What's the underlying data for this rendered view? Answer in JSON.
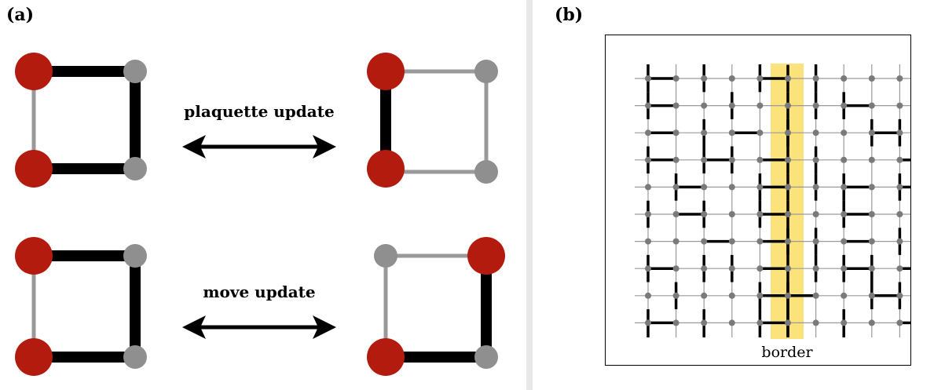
{
  "panel_a": {
    "label": "(a)",
    "plaquette_update_label": "plaquette update",
    "move_update_label": "move update"
  },
  "panel_b": {
    "label": "(b)",
    "border_label": "border"
  },
  "colors": {
    "red_site": "#b31b0f",
    "gray_site": "#8f8f8f",
    "heavy_bond": "#000000",
    "light_bond": "#999999",
    "border_strip": "#fbe27a",
    "lattice_node": "#7a7a7a",
    "divider": "#e8e8e8"
  }
}
